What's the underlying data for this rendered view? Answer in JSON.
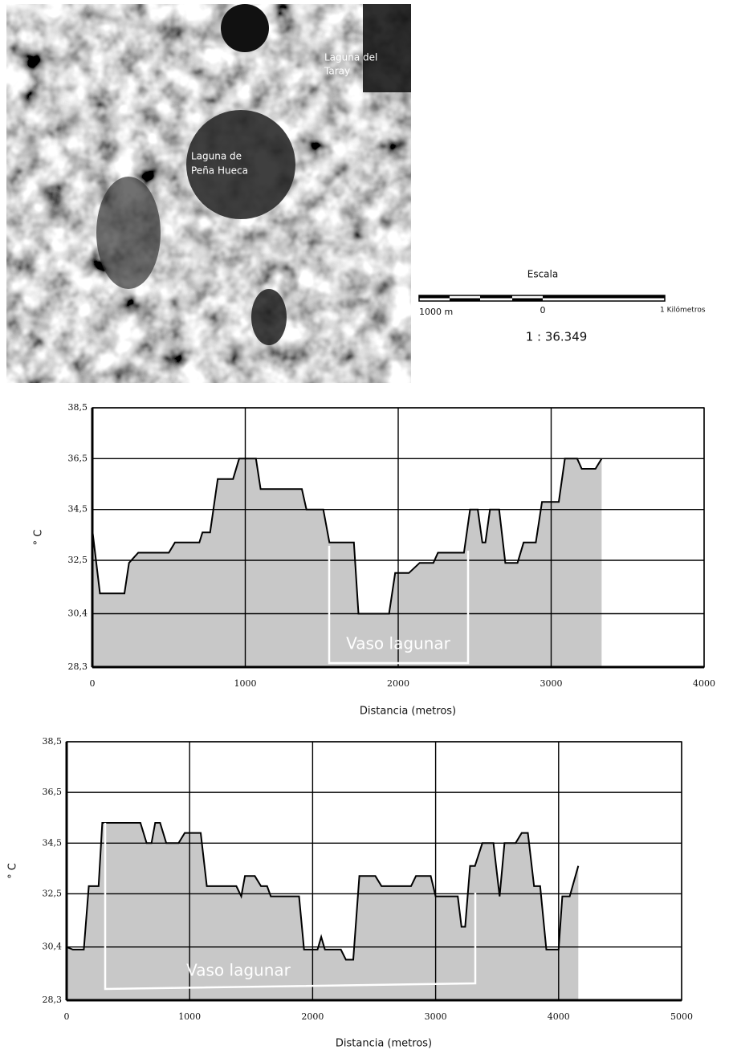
{
  "map": {
    "labels": [
      [
        "Laguna del",
        "Taray"
      ],
      [
        "Laguna de",
        "Peña Hueca"
      ]
    ]
  },
  "scale": {
    "title": "Escala",
    "labels": [
      "1000 m",
      "0",
      "1 Kilómetros"
    ],
    "ratio": "1 : 36.349"
  },
  "chart_data": [
    {
      "type": "area",
      "xlabel": "Distancia (metros)",
      "ylabel": "° C",
      "annotation": "Vaso lagunar",
      "color": "#c8c8c8",
      "line_color": "#000000",
      "grid": true,
      "xlim": [
        0,
        4000
      ],
      "xticks": [
        0,
        1000,
        2000,
        3000,
        4000
      ],
      "ylim": [
        28.3,
        38.5
      ],
      "yticks": [
        {
          "value": 28.3,
          "label": "28,3"
        },
        {
          "value": 30.4,
          "label": "30,4"
        },
        {
          "value": 32.5,
          "label": "32,5"
        },
        {
          "value": 34.5,
          "label": "34,5"
        },
        {
          "value": 36.5,
          "label": "36,5"
        },
        {
          "value": 38.5,
          "label": "38,5"
        }
      ],
      "x": [
        0,
        50,
        210,
        240,
        300,
        500,
        540,
        700,
        720,
        770,
        820,
        920,
        960,
        1070,
        1100,
        1370,
        1400,
        1510,
        1550,
        1710,
        1740,
        1940,
        1980,
        2070,
        2140,
        2230,
        2260,
        2430,
        2470,
        2520,
        2550,
        2570,
        2600,
        2660,
        2700,
        2780,
        2820,
        2900,
        2940,
        3050,
        3090,
        3170,
        3200,
        3290,
        3330
      ],
      "values": [
        33.7,
        31.2,
        31.2,
        32.4,
        32.8,
        32.8,
        33.2,
        33.2,
        33.6,
        33.6,
        35.7,
        35.7,
        36.5,
        36.5,
        35.3,
        35.3,
        34.5,
        34.5,
        33.2,
        33.2,
        30.4,
        30.4,
        32.0,
        32.0,
        32.4,
        32.4,
        32.8,
        32.8,
        34.5,
        34.5,
        33.2,
        33.2,
        34.5,
        34.5,
        32.4,
        32.4,
        33.2,
        33.2,
        34.8,
        34.8,
        36.5,
        36.5,
        36.1,
        36.1,
        36.5
      ]
    },
    {
      "type": "area",
      "xlabel": "Distancia (metros)",
      "ylabel": "° C",
      "annotation": "Vaso lagunar",
      "color": "#c8c8c8",
      "line_color": "#000000",
      "grid": true,
      "xlim": [
        0,
        5000
      ],
      "xticks": [
        0,
        1000,
        2000,
        3000,
        4000,
        5000
      ],
      "ylim": [
        28.3,
        38.5
      ],
      "yticks": [
        {
          "value": 28.3,
          "label": "28,3"
        },
        {
          "value": 30.4,
          "label": "30,4"
        },
        {
          "value": 32.5,
          "label": "32,5"
        },
        {
          "value": 34.5,
          "label": "34,5"
        },
        {
          "value": 36.5,
          "label": "36,5"
        },
        {
          "value": 38.5,
          "label": "38,5"
        }
      ],
      "x": [
        0,
        50,
        140,
        180,
        260,
        290,
        600,
        650,
        690,
        720,
        760,
        810,
        910,
        960,
        1090,
        1140,
        1380,
        1420,
        1450,
        1530,
        1580,
        1630,
        1660,
        1890,
        1930,
        2040,
        2070,
        2100,
        2230,
        2270,
        2330,
        2380,
        2510,
        2560,
        2800,
        2840,
        2960,
        3000,
        3180,
        3210,
        3240,
        3280,
        3320,
        3380,
        3470,
        3520,
        3560,
        3650,
        3700,
        3750,
        3800,
        3850,
        3900,
        4000,
        4030,
        4090,
        4160
      ],
      "values": [
        30.4,
        30.3,
        30.3,
        32.8,
        32.8,
        35.3,
        35.3,
        34.5,
        34.5,
        35.3,
        35.3,
        34.5,
        34.5,
        34.9,
        34.9,
        32.8,
        32.8,
        32.4,
        33.2,
        33.2,
        32.8,
        32.8,
        32.4,
        32.4,
        30.3,
        30.3,
        30.8,
        30.3,
        30.3,
        29.9,
        29.9,
        33.2,
        33.2,
        32.8,
        32.8,
        33.2,
        33.2,
        32.4,
        32.4,
        31.2,
        31.2,
        33.6,
        33.6,
        34.5,
        34.5,
        32.4,
        34.5,
        34.5,
        34.9,
        34.9,
        32.8,
        32.8,
        30.3,
        30.3,
        32.4,
        32.4,
        33.6
      ]
    }
  ]
}
